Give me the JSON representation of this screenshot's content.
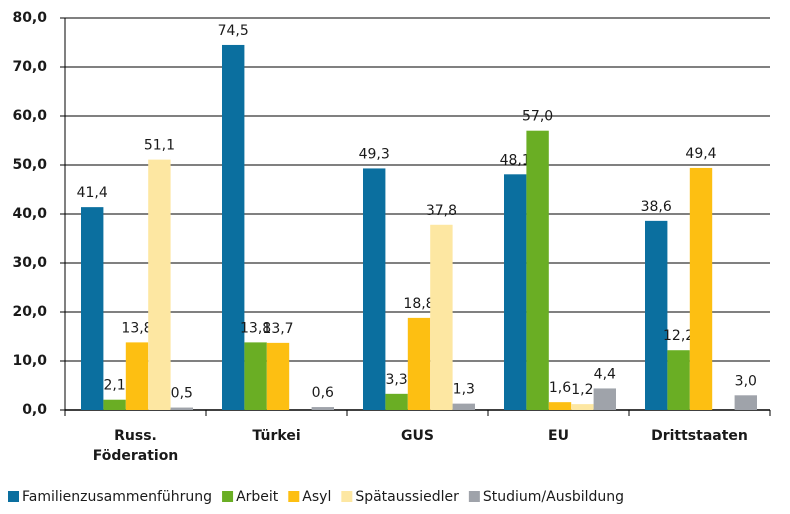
{
  "chart_data": {
    "type": "bar",
    "categories": [
      "Russ.\nFöderation",
      "Türkei",
      "GUS",
      "EU",
      "Drittstaaten"
    ],
    "series": [
      {
        "name": "Familienzusammenführung",
        "color": "#0b6f9f",
        "values": [
          41.4,
          74.5,
          49.3,
          48.1,
          38.6
        ],
        "value_labels": [
          "41,4",
          "74,5",
          "49,3",
          "48,1",
          "38,6"
        ]
      },
      {
        "name": "Arbeit",
        "color": "#6aae24",
        "values": [
          2.1,
          13.8,
          3.3,
          57.0,
          12.2
        ],
        "value_labels": [
          "2,1",
          "13,8",
          "3,3",
          "57,0",
          "12,2"
        ]
      },
      {
        "name": "Asyl",
        "color": "#fdbf12",
        "values": [
          13.8,
          13.7,
          18.8,
          1.6,
          49.4
        ],
        "value_labels": [
          "13,8",
          "13,7",
          "18,8",
          "1,6",
          "49,4"
        ]
      },
      {
        "name": "Spätaussiedler",
        "color": "#fde7a2",
        "values": [
          51.1,
          null,
          37.8,
          1.2,
          null
        ],
        "value_labels": [
          "51,1",
          null,
          "37,8",
          "1,2",
          null
        ]
      },
      {
        "name": "Studium/Ausbildung",
        "color": "#9fa3aa",
        "values": [
          0.5,
          0.6,
          1.3,
          4.4,
          3.0
        ],
        "value_labels": [
          "0,5",
          "0,6",
          "1,3",
          "4,4",
          "3,0"
        ]
      }
    ],
    "ylim": [
      0,
      80
    ],
    "yticks": [
      {
        "value": 0,
        "label": "0,0"
      },
      {
        "value": 10,
        "label": "10,0"
      },
      {
        "value": 20,
        "label": "20,0"
      },
      {
        "value": 30,
        "label": "30,0"
      },
      {
        "value": 40,
        "label": "40,0"
      },
      {
        "value": 50,
        "label": "50,0"
      },
      {
        "value": 60,
        "label": "60,0"
      },
      {
        "value": 70,
        "label": "70,0"
      },
      {
        "value": 80,
        "label": "80,0"
      }
    ],
    "grid": true,
    "legend": "bottom"
  }
}
